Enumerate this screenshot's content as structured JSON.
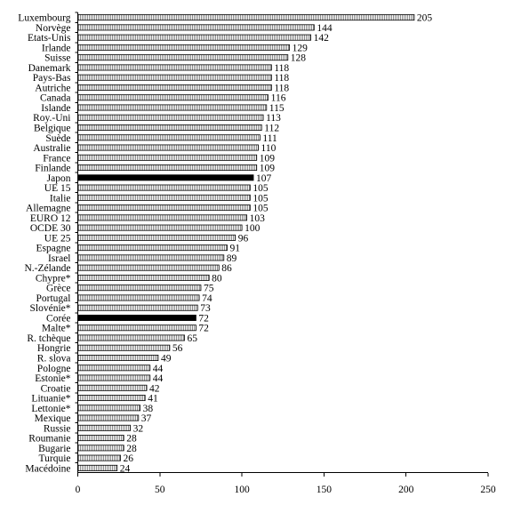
{
  "chart_data": {
    "type": "bar",
    "orientation": "horizontal",
    "title": "",
    "xlabel": "",
    "ylabel": "",
    "xlim": [
      0,
      250
    ],
    "xticks": [
      0,
      50,
      100,
      150,
      200,
      250
    ],
    "grid": false,
    "colors": {
      "default_fill": "#ffffff",
      "default_stroke": "#000000",
      "default_hatch": "#8a8a8a",
      "highlight_fill": "#000000"
    },
    "categories": [
      "Luxembourg",
      "Norvège",
      "Etats-Unis",
      "Irlande",
      "Suisse",
      "Danemark",
      "Pays-Bas",
      "Autriche",
      "Canada",
      "Islande",
      "Roy.-Uni",
      "Belgique",
      "Suède",
      "Australie",
      "France",
      "Finlande",
      "Japon",
      "UE 15",
      "Italie",
      "Allemagne",
      "EURO 12",
      "OCDE 30",
      "UE 25",
      "Espagne",
      "Israel",
      "N.-Zélande",
      "Chypre*",
      "Grèce",
      "Portugal",
      "Slovénie*",
      "Corée",
      "Malte*",
      "R. tchèque",
      "Hongrie",
      "R. slova",
      "Pologne",
      "Estonie*",
      "Croatie",
      "Lituanie*",
      "Lettonie*",
      "Mexique",
      "Russie",
      "Roumanie",
      "Bugarie",
      "Turquie",
      "Macédoine"
    ],
    "values": [
      205,
      144,
      142,
      129,
      128,
      118,
      118,
      118,
      116,
      115,
      113,
      112,
      111,
      110,
      109,
      109,
      107,
      105,
      105,
      105,
      103,
      100,
      96,
      91,
      89,
      86,
      80,
      75,
      74,
      73,
      72,
      72,
      65,
      56,
      49,
      44,
      44,
      42,
      41,
      38,
      37,
      32,
      28,
      28,
      26,
      24
    ],
    "highlighted": [
      "Japon",
      "Corée"
    ]
  }
}
